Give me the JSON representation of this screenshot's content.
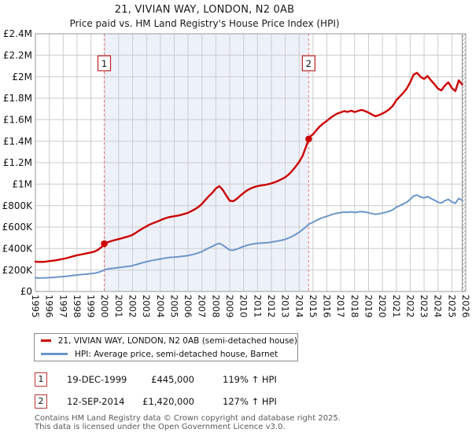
{
  "chart_data": {
    "type": "line",
    "title": "21, VIVIAN WAY, LONDON, N2 0AB",
    "subtitle": "Price paid vs. HM Land Registry's House Price Index (HPI)",
    "xlabel": "",
    "ylabel": "",
    "xlim": [
      1995,
      2026
    ],
    "ylim": [
      0,
      2400
    ],
    "value_unit": "thousand GBP",
    "grid": true,
    "legend_position": "bottom",
    "x_start": 1995.0,
    "x_step": 0.25,
    "x_tick_labels": [
      "1995",
      "1996",
      "1997",
      "1998",
      "1999",
      "2000",
      "2001",
      "2002",
      "2003",
      "2004",
      "2005",
      "2006",
      "2007",
      "2008",
      "2009",
      "2010",
      "2011",
      "2012",
      "2013",
      "2014",
      "2015",
      "2016",
      "2017",
      "2018",
      "2019",
      "2020",
      "2021",
      "2022",
      "2023",
      "2024",
      "2025",
      "2026"
    ],
    "y_tick_values": [
      0,
      200,
      400,
      600,
      800,
      1000,
      1200,
      1400,
      1600,
      1800,
      2000,
      2200,
      2400
    ],
    "y_tick_labels": [
      "£0",
      "£200K",
      "£400K",
      "£600K",
      "£800K",
      "£1M",
      "£1.2M",
      "£1.4M",
      "£1.6M",
      "£1.8M",
      "£2M",
      "£2.2M",
      "£2.4M"
    ],
    "series": [
      {
        "key": "price-paid",
        "name": "21, VIVIAN WAY, LONDON, N2 0AB (semi-detached house)",
        "color": "#cc0000",
        "width": 2.4,
        "values": [
          278,
          276,
          276,
          278,
          283,
          287,
          291,
          298,
          304,
          311,
          320,
          329,
          337,
          344,
          350,
          357,
          364,
          372,
          388,
          412,
          447,
          460,
          471,
          480,
          488,
          497,
          506,
          515,
          528,
          548,
          569,
          589,
          607,
          624,
          637,
          650,
          664,
          677,
          688,
          696,
          701,
          707,
          714,
          723,
          734,
          749,
          767,
          788,
          815,
          854,
          889,
          920,
          959,
          981,
          946,
          894,
          845,
          841,
          863,
          891,
          918,
          942,
          959,
          972,
          981,
          988,
          992,
          999,
          1007,
          1018,
          1031,
          1047,
          1064,
          1090,
          1123,
          1163,
          1207,
          1264,
          1350,
          1440,
          1464,
          1503,
          1539,
          1566,
          1589,
          1616,
          1639,
          1657,
          1668,
          1680,
          1673,
          1684,
          1671,
          1682,
          1691,
          1680,
          1666,
          1648,
          1632,
          1643,
          1657,
          1675,
          1698,
          1730,
          1782,
          1816,
          1850,
          1889,
          1948,
          2020,
          2036,
          1998,
          1979,
          2007,
          1966,
          1930,
          1889,
          1873,
          1918,
          1948,
          1895,
          1866,
          1966,
          1927
        ]
      },
      {
        "key": "hpi",
        "name": "HPI: Average price, semi-detached house, Barnet",
        "color": "#6b96c8",
        "width": 2,
        "values": [
          127,
          126,
          126,
          127,
          129,
          131,
          133,
          136,
          139,
          142,
          146,
          150,
          154,
          157,
          160,
          163,
          166,
          170,
          177,
          188,
          204,
          210,
          215,
          219,
          223,
          227,
          231,
          235,
          241,
          250,
          260,
          269,
          277,
          285,
          291,
          297,
          303,
          309,
          314,
          318,
          320,
          323,
          326,
          330,
          335,
          342,
          350,
          360,
          372,
          390,
          406,
          420,
          438,
          448,
          432,
          408,
          386,
          384,
          394,
          407,
          419,
          430,
          438,
          444,
          448,
          451,
          453,
          456,
          460,
          465,
          471,
          478,
          486,
          498,
          513,
          531,
          551,
          577,
          604,
          630,
          645,
          662,
          678,
          690,
          700,
          712,
          722,
          730,
          735,
          740,
          737,
          742,
          736,
          741,
          745,
          740,
          734,
          726,
          719,
          724,
          730,
          738,
          748,
          762,
          785,
          800,
          815,
          832,
          858,
          890,
          897,
          880,
          872,
          884,
          866,
          850,
          832,
          825,
          845,
          858,
          835,
          822,
          866,
          849
        ]
      }
    ],
    "sale_markers": [
      {
        "label": "1",
        "x": 1999.96,
        "value": 445
      },
      {
        "label": "2",
        "x": 2014.69,
        "value": 1420
      }
    ],
    "shaded_region": {
      "from": 1999.96,
      "to": 2014.69,
      "color": "#edf1fa"
    },
    "hatch_region": {
      "from": 2025.75,
      "to": 2026
    },
    "colors": {
      "grid": "#cccccc",
      "border": "#999999",
      "dashed_line": "#f08888",
      "sale_dot": "#cc0000",
      "marker_box_border": "#bb2222",
      "hatch": "#b0b4c0",
      "tick_text": "#111111"
    }
  },
  "legend": {
    "items": [
      {
        "label": "21, VIVIAN WAY, LONDON, N2 0AB (semi-detached house)",
        "color": "#cc0000"
      },
      {
        "label": "HPI: Average price, semi-detached house, Barnet",
        "color": "#6b96c8"
      }
    ]
  },
  "annotations": [
    {
      "num": "1",
      "date": "19-DEC-1999",
      "price": "£445,000",
      "hpi_relation": "119% ↑ HPI"
    },
    {
      "num": "2",
      "date": "12-SEP-2014",
      "price": "£1,420,000",
      "hpi_relation": "127% ↑ HPI"
    }
  ],
  "footer": {
    "line1": "Contains HM Land Registry data © Crown copyright and database right 2025.",
    "line2": "This data is licensed under the Open Government Licence v3.0."
  }
}
